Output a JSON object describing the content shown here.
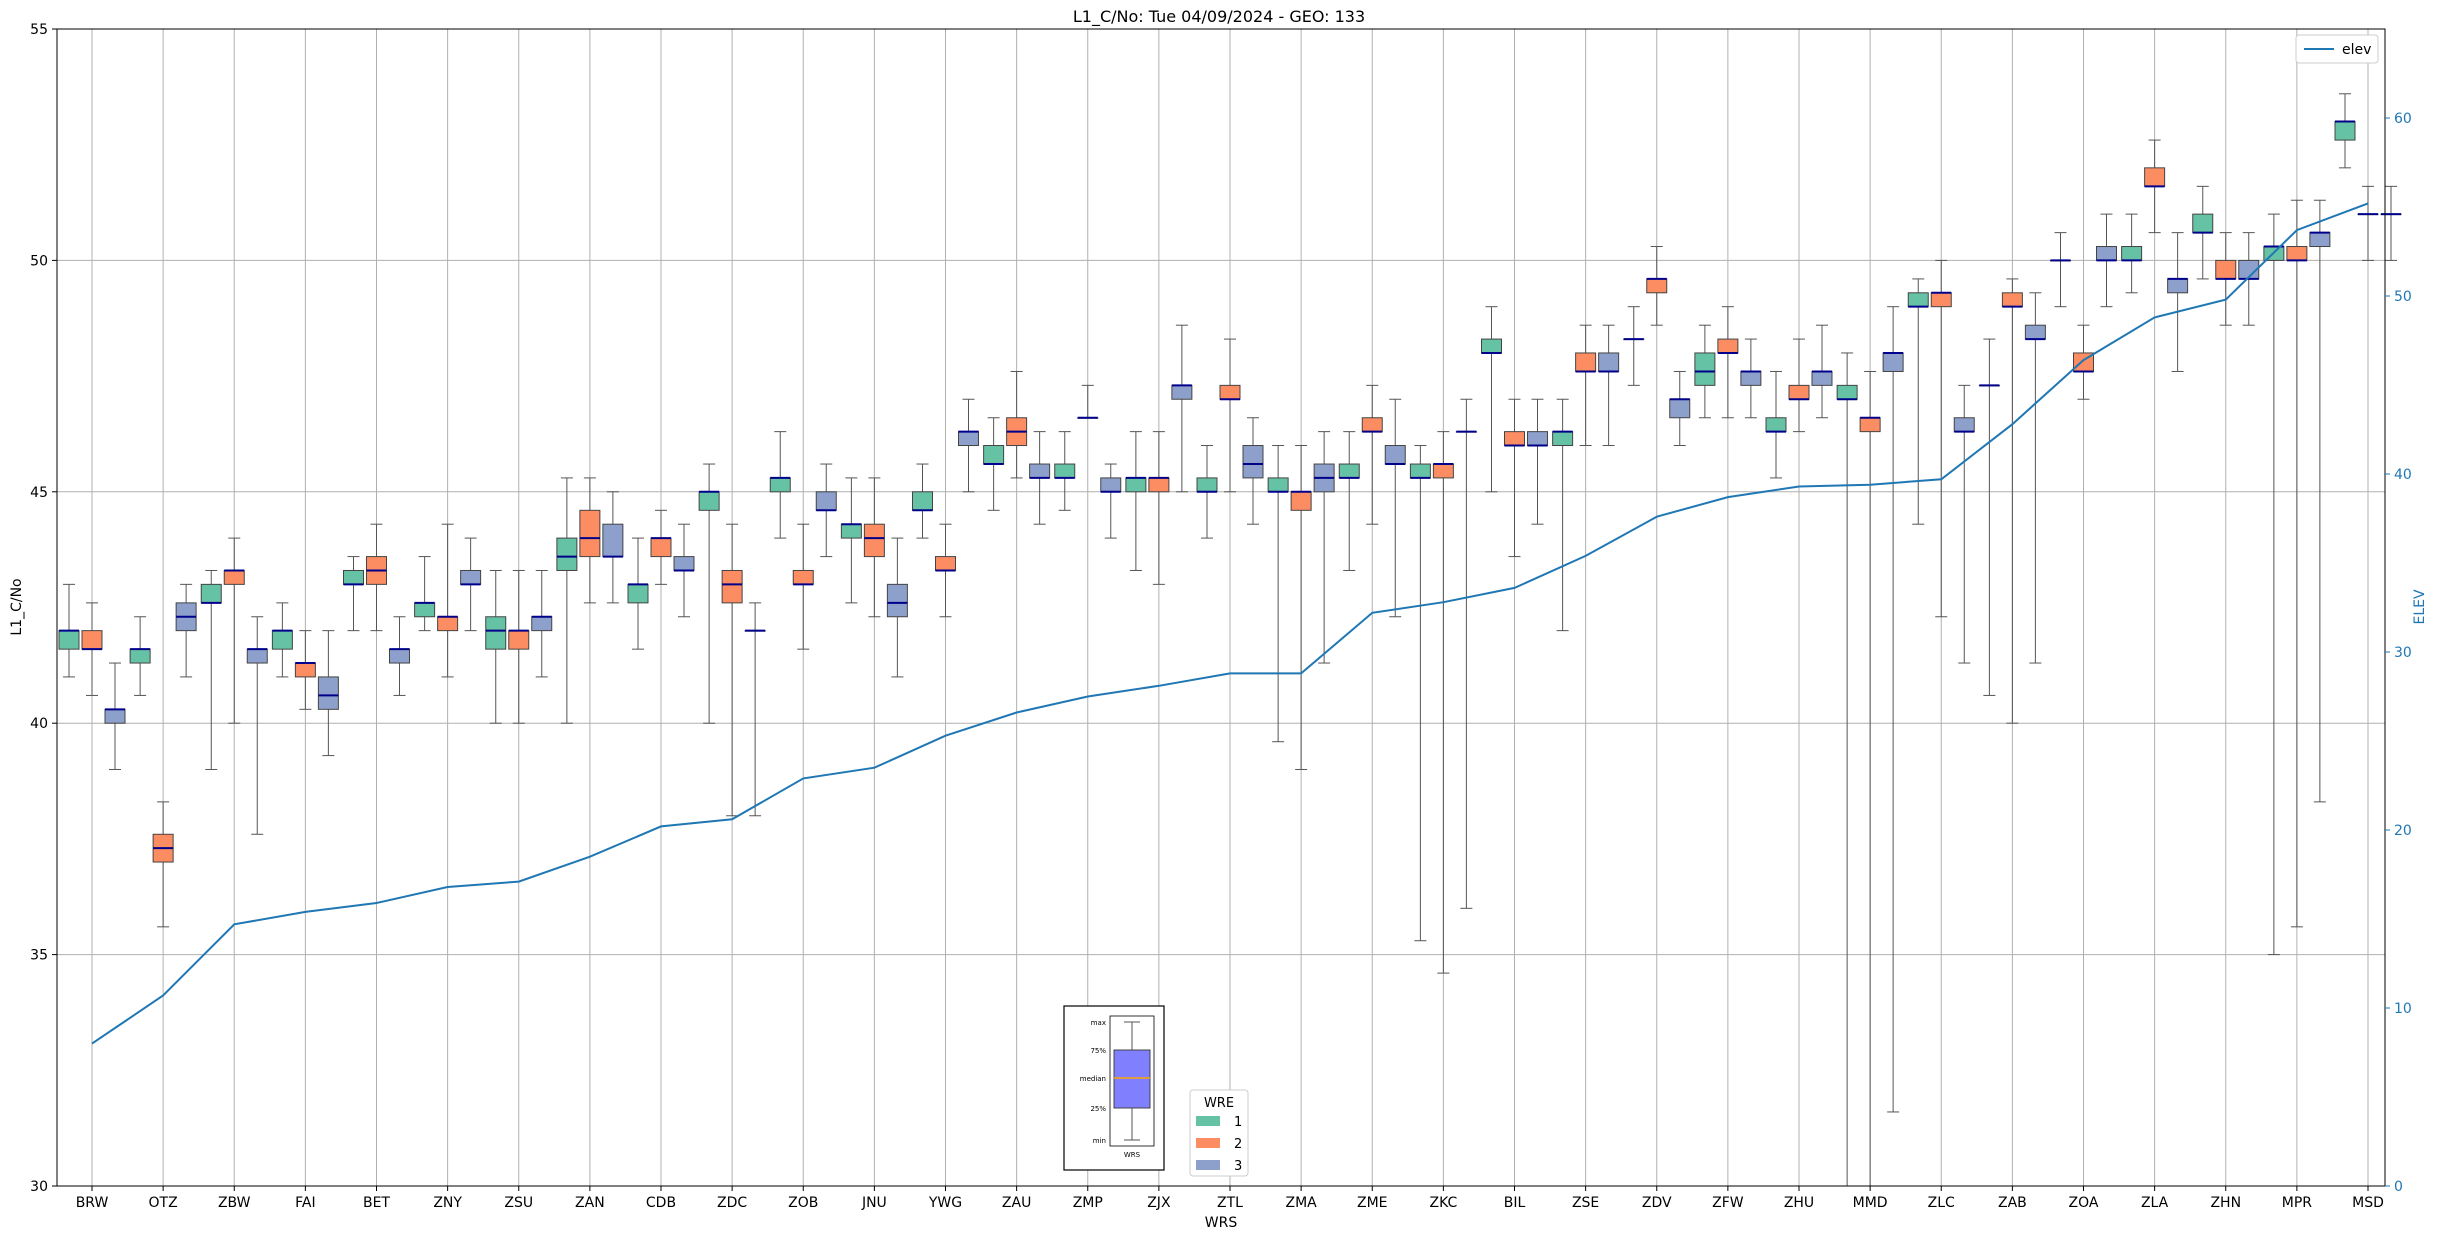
{
  "chart_data": {
    "type": "box",
    "title": "L1_C/No: Tue 04/09/2024 - GEO: 133",
    "xlabel": "WRS",
    "ylabel": "L1_C/No",
    "y2label": "ELEV",
    "ylim": [
      30,
      55
    ],
    "y2lim": [
      0,
      65
    ],
    "yticks": [
      30,
      35,
      40,
      45,
      50,
      55
    ],
    "y2ticks": [
      0,
      10,
      20,
      30,
      40,
      50,
      60
    ],
    "grid": true,
    "legend_position": "upper right",
    "legend": {
      "line_label": "elev"
    },
    "wre_legend": {
      "title": "WRE",
      "labels": [
        "1",
        "2",
        "3"
      ]
    },
    "inset_legend": {
      "labels": [
        "max",
        "75%",
        "median",
        "25%",
        "min"
      ],
      "xlabel": "WRS"
    },
    "colors": {
      "wre1": "#66c2a5",
      "wre2": "#fc8d62",
      "wre3": "#8da0cb",
      "median": "#00008b",
      "elev_line": "#1f77b4",
      "inset_box": "#8080ff",
      "inset_median": "#ffa500"
    },
    "categories": [
      "BRW",
      "OTZ",
      "ZBW",
      "FAI",
      "BET",
      "ZNY",
      "ZSU",
      "ZAN",
      "CDB",
      "ZDC",
      "ZOB",
      "JNU",
      "YWG",
      "ZAU",
      "ZMP",
      "ZJX",
      "ZTL",
      "ZMA",
      "ZME",
      "ZKC",
      "BIL",
      "ZSE",
      "ZDV",
      "ZFW",
      "ZHU",
      "MMD",
      "ZLC",
      "ZAB",
      "ZOA",
      "ZLA",
      "ZHN",
      "MPR",
      "MSD"
    ],
    "elev": [
      8,
      10.7,
      14.7,
      15.4,
      15.9,
      16.8,
      17.1,
      18.5,
      20.2,
      20.6,
      22.9,
      23.5,
      25.3,
      26.6,
      27.5,
      28.1,
      28.8,
      28.8,
      32.2,
      32.8,
      33.6,
      35.4,
      37.6,
      38.7,
      39.3,
      39.4,
      39.7,
      42.8,
      46.4,
      48.8,
      49.8,
      53.7,
      55.2
    ],
    "series": [
      {
        "name": "1",
        "boxes": [
          {
            "cat": "BRW",
            "min": 41,
            "q1": 41.6,
            "med": 42,
            "q3": 42,
            "max": 43
          },
          {
            "cat": "OTZ",
            "min": 40.6,
            "q1": 41.3,
            "med": 41.6,
            "q3": 41.6,
            "max": 42.3
          },
          {
            "cat": "ZBW",
            "min": 39,
            "q1": 42.6,
            "med": 42.6,
            "q3": 43,
            "max": 43.3
          },
          {
            "cat": "FAI",
            "min": 41,
            "q1": 41.6,
            "med": 42,
            "q3": 42,
            "max": 42.6
          },
          {
            "cat": "BET",
            "min": 42,
            "q1": 43,
            "med": 43,
            "q3": 43.3,
            "max": 43.6
          },
          {
            "cat": "ZNY",
            "min": 42,
            "q1": 42.3,
            "med": 42.6,
            "q3": 42.6,
            "max": 43.6
          },
          {
            "cat": "ZSU",
            "min": 40,
            "q1": 41.6,
            "med": 42,
            "q3": 42.3,
            "max": 43.3
          },
          {
            "cat": "ZAN",
            "min": 40,
            "q1": 43.3,
            "med": 43.6,
            "q3": 44,
            "max": 45.3
          },
          {
            "cat": "CDB",
            "min": 41.6,
            "q1": 42.6,
            "med": 43,
            "q3": 43,
            "max": 44
          },
          {
            "cat": "ZDC",
            "min": 40,
            "q1": 44.6,
            "med": 45,
            "q3": 45,
            "max": 45.6
          },
          {
            "cat": "ZOB",
            "min": 44,
            "q1": 45,
            "med": 45.3,
            "q3": 45.3,
            "max": 46.3
          },
          {
            "cat": "JNU",
            "min": 42.6,
            "q1": 44,
            "med": 44.3,
            "q3": 44.3,
            "max": 45.3
          },
          {
            "cat": "YWG",
            "min": 44,
            "q1": 44.6,
            "med": 44.6,
            "q3": 45,
            "max": 45.6
          },
          {
            "cat": "ZAU",
            "min": 44.6,
            "q1": 45.6,
            "med": 45.6,
            "q3": 46,
            "max": 46.6
          },
          {
            "cat": "ZMP",
            "min": 44.6,
            "q1": 45.3,
            "med": 45.3,
            "q3": 45.6,
            "max": 46.3
          },
          {
            "cat": "ZJX",
            "min": 43.3,
            "q1": 45,
            "med": 45.3,
            "q3": 45.3,
            "max": 46.3
          },
          {
            "cat": "ZTL",
            "min": 44,
            "q1": 45,
            "med": 45,
            "q3": 45.3,
            "max": 46
          },
          {
            "cat": "ZMA",
            "min": 39.6,
            "q1": 45,
            "med": 45,
            "q3": 45.3,
            "max": 46
          },
          {
            "cat": "ZME",
            "min": 43.3,
            "q1": 45.3,
            "med": 45.3,
            "q3": 45.6,
            "max": 46.3
          },
          {
            "cat": "ZKC",
            "min": 35.3,
            "q1": 45.3,
            "med": 45.3,
            "q3": 45.6,
            "max": 46
          },
          {
            "cat": "BIL",
            "min": 45,
            "q1": 48,
            "med": 48,
            "q3": 48.3,
            "max": 49
          },
          {
            "cat": "ZSE",
            "min": 42,
            "q1": 46,
            "med": 46.3,
            "q3": 46.3,
            "max": 47
          },
          {
            "cat": "ZDV",
            "min": 47.3,
            "q1": 48.3,
            "med": 48.3,
            "q3": 48.3,
            "max": 49
          },
          {
            "cat": "ZFW",
            "min": 46.6,
            "q1": 47.3,
            "med": 47.6,
            "q3": 48,
            "max": 48.6
          },
          {
            "cat": "ZHU",
            "min": 45.3,
            "q1": 46.3,
            "med": 46.3,
            "q3": 46.6,
            "max": 47.6
          },
          {
            "cat": "MMD",
            "min": 30,
            "q1": 47,
            "med": 47,
            "q3": 47.3,
            "max": 48
          },
          {
            "cat": "ZLC",
            "min": 44.3,
            "q1": 49,
            "med": 49,
            "q3": 49.3,
            "max": 49.6
          },
          {
            "cat": "ZAB",
            "min": 40.6,
            "q1": 47.3,
            "med": 47.3,
            "q3": 47.3,
            "max": 48.3
          },
          {
            "cat": "ZOA",
            "min": 49,
            "q1": 50,
            "med": 50,
            "q3": 50,
            "max": 50.6
          },
          {
            "cat": "ZLA",
            "min": 49.3,
            "q1": 50,
            "med": 50,
            "q3": 50.3,
            "max": 51
          },
          {
            "cat": "ZHN",
            "min": 49.6,
            "q1": 50.6,
            "med": 50.6,
            "q3": 51,
            "max": 51.6
          },
          {
            "cat": "MPR",
            "min": 35,
            "q1": 50,
            "med": 50.3,
            "q3": 50.3,
            "max": 51
          },
          {
            "cat": "MSD",
            "min": 52,
            "q1": 52.6,
            "med": 53,
            "q3": 53,
            "max": 53.6
          }
        ]
      },
      {
        "name": "2",
        "boxes": [
          {
            "cat": "BRW",
            "min": 40.6,
            "q1": 41.6,
            "med": 41.6,
            "q3": 42,
            "max": 42.6
          },
          {
            "cat": "OTZ",
            "min": 35.6,
            "q1": 37,
            "med": 37.3,
            "q3": 37.6,
            "max": 38.3
          },
          {
            "cat": "ZBW",
            "min": 40,
            "q1": 43,
            "med": 43.3,
            "q3": 43.3,
            "max": 44
          },
          {
            "cat": "FAI",
            "min": 40.3,
            "q1": 41,
            "med": 41.3,
            "q3": 41.3,
            "max": 42
          },
          {
            "cat": "BET",
            "min": 42,
            "q1": 43,
            "med": 43.3,
            "q3": 43.6,
            "max": 44.3
          },
          {
            "cat": "ZNY",
            "min": 41,
            "q1": 42,
            "med": 42.3,
            "q3": 42.3,
            "max": 44.3
          },
          {
            "cat": "ZSU",
            "min": 40,
            "q1": 41.6,
            "med": 42,
            "q3": 42,
            "max": 43.3
          },
          {
            "cat": "ZAN",
            "min": 42.6,
            "q1": 43.6,
            "med": 44,
            "q3": 44.6,
            "max": 45.3
          },
          {
            "cat": "CDB",
            "min": 43,
            "q1": 43.6,
            "med": 44,
            "q3": 44,
            "max": 44.6
          },
          {
            "cat": "ZDC",
            "min": 38,
            "q1": 42.6,
            "med": 43,
            "q3": 43.3,
            "max": 44.3
          },
          {
            "cat": "ZOB",
            "min": 41.6,
            "q1": 43,
            "med": 43,
            "q3": 43.3,
            "max": 44.3
          },
          {
            "cat": "JNU",
            "min": 42.3,
            "q1": 43.6,
            "med": 44,
            "q3": 44.3,
            "max": 45.3
          },
          {
            "cat": "YWG",
            "min": 42.3,
            "q1": 43.3,
            "med": 43.3,
            "q3": 43.6,
            "max": 44.3
          },
          {
            "cat": "ZAU",
            "min": 45.3,
            "q1": 46,
            "med": 46.3,
            "q3": 46.6,
            "max": 47.6
          },
          {
            "cat": "ZMP",
            "min": 46.6,
            "q1": 46.6,
            "med": 46.6,
            "q3": 46.6,
            "max": 47.3
          },
          {
            "cat": "ZJX",
            "min": 43,
            "q1": 45,
            "med": 45.3,
            "q3": 45.3,
            "max": 46.3
          },
          {
            "cat": "ZTL",
            "min": 45,
            "q1": 47,
            "med": 47,
            "q3": 47.3,
            "max": 48.3
          },
          {
            "cat": "ZMA",
            "min": 39,
            "q1": 44.6,
            "med": 45,
            "q3": 45,
            "max": 46
          },
          {
            "cat": "ZME",
            "min": 44.3,
            "q1": 46.3,
            "med": 46.3,
            "q3": 46.6,
            "max": 47.3
          },
          {
            "cat": "ZKC",
            "min": 34.6,
            "q1": 45.3,
            "med": 45.6,
            "q3": 45.6,
            "max": 46.3
          },
          {
            "cat": "BIL",
            "min": 43.6,
            "q1": 46,
            "med": 46,
            "q3": 46.3,
            "max": 47
          },
          {
            "cat": "ZSE",
            "min": 46,
            "q1": 47.6,
            "med": 47.6,
            "q3": 48,
            "max": 48.6
          },
          {
            "cat": "ZDV",
            "min": 48.6,
            "q1": 49.3,
            "med": 49.6,
            "q3": 49.6,
            "max": 50.3
          },
          {
            "cat": "ZFW",
            "min": 46.6,
            "q1": 48,
            "med": 48,
            "q3": 48.3,
            "max": 49
          },
          {
            "cat": "ZHU",
            "min": 46.3,
            "q1": 47,
            "med": 47,
            "q3": 47.3,
            "max": 48.3
          },
          {
            "cat": "MMD",
            "min": 30,
            "q1": 46.3,
            "med": 46.6,
            "q3": 46.6,
            "max": 47.6
          },
          {
            "cat": "ZLC",
            "min": 42.3,
            "q1": 49,
            "med": 49.3,
            "q3": 49.3,
            "max": 50
          },
          {
            "cat": "ZAB",
            "min": 40,
            "q1": 49,
            "med": 49,
            "q3": 49.3,
            "max": 49.6
          },
          {
            "cat": "ZOA",
            "min": 47,
            "q1": 47.6,
            "med": 47.6,
            "q3": 48,
            "max": 48.6
          },
          {
            "cat": "ZLA",
            "min": 50.6,
            "q1": 51.6,
            "med": 51.6,
            "q3": 52,
            "max": 52.6
          },
          {
            "cat": "ZHN",
            "min": 48.6,
            "q1": 49.6,
            "med": 49.6,
            "q3": 50,
            "max": 50.6
          },
          {
            "cat": "MPR",
            "min": 35.6,
            "q1": 50,
            "med": 50,
            "q3": 50.3,
            "max": 51.3
          },
          {
            "cat": "MSD",
            "min": 50,
            "q1": 51,
            "med": 51,
            "q3": 51,
            "max": 51.6
          }
        ]
      },
      {
        "name": "3",
        "boxes": [
          {
            "cat": "BRW",
            "min": 39,
            "q1": 40,
            "med": 40.3,
            "q3": 40.3,
            "max": 41.3
          },
          {
            "cat": "OTZ",
            "min": 41,
            "q1": 42,
            "med": 42.3,
            "q3": 42.6,
            "max": 43
          },
          {
            "cat": "ZBW",
            "min": 37.6,
            "q1": 41.3,
            "med": 41.6,
            "q3": 41.6,
            "max": 42.3
          },
          {
            "cat": "FAI",
            "min": 39.3,
            "q1": 40.3,
            "med": 40.6,
            "q3": 41,
            "max": 42
          },
          {
            "cat": "BET",
            "min": 40.6,
            "q1": 41.3,
            "med": 41.6,
            "q3": 41.6,
            "max": 42.3
          },
          {
            "cat": "ZNY",
            "min": 42,
            "q1": 43,
            "med": 43,
            "q3": 43.3,
            "max": 44
          },
          {
            "cat": "ZSU",
            "min": 41,
            "q1": 42,
            "med": 42.3,
            "q3": 42.3,
            "max": 43.3
          },
          {
            "cat": "ZAN",
            "min": 42.6,
            "q1": 43.6,
            "med": 43.6,
            "q3": 44.3,
            "max": 45
          },
          {
            "cat": "CDB",
            "min": 42.3,
            "q1": 43.3,
            "med": 43.3,
            "q3": 43.6,
            "max": 44.3
          },
          {
            "cat": "ZDC",
            "min": 38,
            "q1": 42,
            "med": 42,
            "q3": 42,
            "max": 42.6
          },
          {
            "cat": "ZOB",
            "min": 43.6,
            "q1": 44.6,
            "med": 44.6,
            "q3": 45,
            "max": 45.6
          },
          {
            "cat": "JNU",
            "min": 41,
            "q1": 42.3,
            "med": 42.6,
            "q3": 43,
            "max": 44
          },
          {
            "cat": "YWG",
            "min": 45,
            "q1": 46,
            "med": 46.3,
            "q3": 46.3,
            "max": 47
          },
          {
            "cat": "ZAU",
            "min": 44.3,
            "q1": 45.3,
            "med": 45.3,
            "q3": 45.6,
            "max": 46.3
          },
          {
            "cat": "ZMP",
            "min": 44,
            "q1": 45,
            "med": 45,
            "q3": 45.3,
            "max": 45.6
          },
          {
            "cat": "ZJX",
            "min": 45,
            "q1": 47,
            "med": 47.3,
            "q3": 47.3,
            "max": 48.6
          },
          {
            "cat": "ZTL",
            "min": 44.3,
            "q1": 45.3,
            "med": 45.6,
            "q3": 46,
            "max": 46.6
          },
          {
            "cat": "ZMA",
            "min": 41.3,
            "q1": 45,
            "med": 45.3,
            "q3": 45.6,
            "max": 46.3
          },
          {
            "cat": "ZME",
            "min": 42.3,
            "q1": 45.6,
            "med": 45.6,
            "q3": 46,
            "max": 47
          },
          {
            "cat": "ZKC",
            "min": 36,
            "q1": 46.3,
            "med": 46.3,
            "q3": 46.3,
            "max": 47
          },
          {
            "cat": "BIL",
            "min": 44.3,
            "q1": 46,
            "med": 46,
            "q3": 46.3,
            "max": 47
          },
          {
            "cat": "ZSE",
            "min": 46,
            "q1": 47.6,
            "med": 47.6,
            "q3": 48,
            "max": 48.6
          },
          {
            "cat": "ZDV",
            "min": 46,
            "q1": 46.6,
            "med": 47,
            "q3": 47,
            "max": 47.6
          },
          {
            "cat": "ZFW",
            "min": 46.6,
            "q1": 47.3,
            "med": 47.6,
            "q3": 47.6,
            "max": 48.3
          },
          {
            "cat": "ZHU",
            "min": 46.6,
            "q1": 47.3,
            "med": 47.6,
            "q3": 47.6,
            "max": 48.6
          },
          {
            "cat": "MMD",
            "min": 31.6,
            "q1": 47.6,
            "med": 48,
            "q3": 48,
            "max": 49
          },
          {
            "cat": "ZLC",
            "min": 41.3,
            "q1": 46.3,
            "med": 46.3,
            "q3": 46.6,
            "max": 47.3
          },
          {
            "cat": "ZAB",
            "min": 41.3,
            "q1": 48.3,
            "med": 48.3,
            "q3": 48.6,
            "max": 49.3
          },
          {
            "cat": "ZOA",
            "min": 49,
            "q1": 50,
            "med": 50,
            "q3": 50.3,
            "max": 51
          },
          {
            "cat": "ZLA",
            "min": 47.6,
            "q1": 49.3,
            "med": 49.6,
            "q3": 49.6,
            "max": 50.6
          },
          {
            "cat": "ZHN",
            "min": 48.6,
            "q1": 49.6,
            "med": 49.6,
            "q3": 50,
            "max": 50.6
          },
          {
            "cat": "MPR",
            "min": 38.3,
            "q1": 50.3,
            "med": 50.6,
            "q3": 50.6,
            "max": 51.3
          },
          {
            "cat": "MSD",
            "min": 50,
            "q1": 51,
            "med": 51,
            "q3": 51,
            "max": 51.6
          }
        ]
      }
    ]
  }
}
